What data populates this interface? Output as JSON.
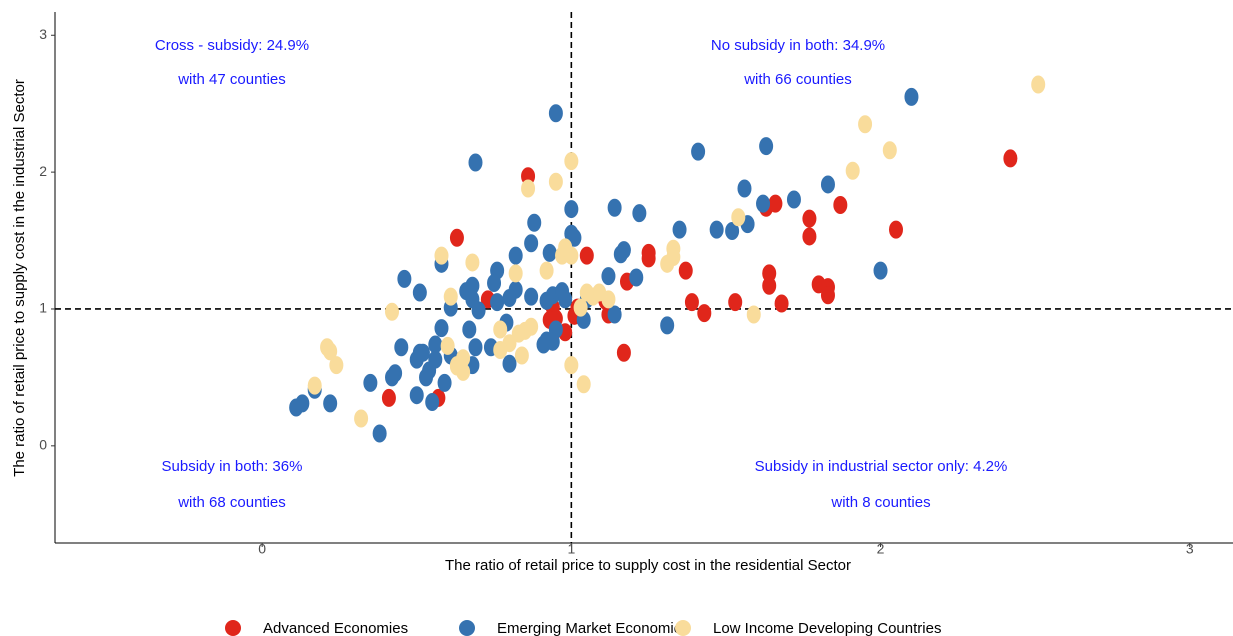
{
  "chart_data": {
    "type": "scatter",
    "x_label": "The ratio of retail price to supply cost in the residential Sector",
    "y_label": "The ratio of retail price to supply cost in the industrial Sector",
    "xlim": [
      -0.67,
      3.14
    ],
    "ylim": [
      -0.71,
      3.17
    ],
    "xticks": [
      0,
      1,
      2,
      3
    ],
    "yticks": [
      0,
      1,
      2,
      3
    ],
    "vline": 1,
    "hline": 1,
    "legend": "bottom",
    "annotations": [
      "Cross - subsidy: 24.9%",
      "with 47 counties",
      "No subsidy in both: 34.9%",
      "with 66 counties",
      "Subsidy in both: 36%",
      "with 68 counties",
      "Subsidy in industrial sector only: 4.2%",
      "with 8 counties"
    ],
    "series": [
      {
        "name": "Advanced Economies",
        "color": "#e0261b",
        "x": [
          0.63,
          0.86,
          1.05,
          1.25,
          1.25,
          1.18,
          1.37,
          1.39,
          1.43,
          1.11,
          1.12,
          1.17,
          1.53,
          1.63,
          1.66,
          1.64,
          1.64,
          1.68,
          1.77,
          1.77,
          1.8,
          1.83,
          1.83,
          1.87,
          2.05,
          2.42,
          0.73,
          0.94,
          0.95,
          0.98,
          0.93,
          0.41,
          0.57,
          1.01,
          1.02
        ],
        "y": [
          1.52,
          1.97,
          1.39,
          1.41,
          1.37,
          1.2,
          1.28,
          1.05,
          0.97,
          1.06,
          0.96,
          0.68,
          1.05,
          1.74,
          1.77,
          1.26,
          1.17,
          1.04,
          1.66,
          1.53,
          1.18,
          1.16,
          1.1,
          1.76,
          1.58,
          2.1,
          1.07,
          1.01,
          0.93,
          0.83,
          0.92,
          0.35,
          0.35,
          0.95,
          1.01
        ]
      },
      {
        "name": "Emerging Market Economies",
        "color": "#3572b0",
        "x": [
          0.95,
          0.69,
          1.41,
          1.63,
          2.1,
          1.83,
          1.56,
          1.72,
          1.62,
          1.14,
          1.0,
          1.22,
          0.88,
          1.57,
          1.52,
          1.47,
          1.35,
          1.0,
          1.01,
          0.87,
          1.17,
          1.16,
          0.93,
          0.82,
          0.58,
          0.76,
          0.46,
          1.12,
          1.21,
          0.75,
          0.68,
          0.51,
          0.82,
          0.66,
          0.8,
          0.87,
          0.94,
          0.97,
          0.98,
          0.92,
          0.68,
          0.61,
          0.76,
          0.7,
          1.05,
          1.14,
          0.67,
          0.79,
          0.58,
          1.04,
          0.95,
          0.92,
          0.94,
          0.91,
          0.45,
          0.56,
          0.69,
          0.74,
          0.61,
          0.52,
          0.56,
          0.5,
          0.43,
          0.54,
          0.68,
          0.8,
          0.53,
          0.42,
          0.35,
          0.59,
          0.17,
          0.5,
          0.55,
          0.22,
          0.13,
          0.11,
          0.38,
          2.0,
          1.31,
          0.51
        ],
        "y": [
          2.43,
          2.07,
          2.15,
          2.19,
          2.55,
          1.91,
          1.88,
          1.8,
          1.77,
          1.74,
          1.73,
          1.7,
          1.63,
          1.62,
          1.57,
          1.58,
          1.58,
          1.55,
          1.52,
          1.48,
          1.43,
          1.4,
          1.41,
          1.39,
          1.33,
          1.28,
          1.22,
          1.24,
          1.23,
          1.19,
          1.17,
          1.12,
          1.14,
          1.13,
          1.08,
          1.09,
          1.1,
          1.13,
          1.07,
          1.06,
          1.07,
          1.01,
          1.05,
          0.99,
          1.07,
          0.96,
          0.85,
          0.9,
          0.86,
          0.92,
          0.85,
          0.77,
          0.76,
          0.74,
          0.72,
          0.74,
          0.72,
          0.72,
          0.66,
          0.68,
          0.63,
          0.63,
          0.53,
          0.55,
          0.59,
          0.6,
          0.5,
          0.5,
          0.46,
          0.46,
          0.41,
          0.37,
          0.32,
          0.31,
          0.31,
          0.28,
          0.09,
          1.28,
          0.88,
          0.68
        ]
      },
      {
        "name": "Low Income Developing Countries",
        "color": "#f9dc9b",
        "x": [
          2.51,
          1.95,
          2.03,
          1.91,
          1.0,
          0.95,
          0.86,
          1.54,
          1.33,
          1.33,
          1.31,
          0.97,
          1.0,
          0.58,
          0.68,
          0.82,
          0.92,
          0.98,
          1.07,
          1.09,
          1.05,
          1.03,
          0.61,
          0.42,
          0.77,
          0.83,
          0.85,
          0.87,
          0.8,
          0.84,
          0.77,
          0.6,
          0.65,
          0.63,
          0.65,
          1.0,
          1.04,
          0.21,
          0.22,
          0.24,
          0.17,
          0.32,
          1.59,
          1.12,
          0.63
        ],
        "y": [
          2.64,
          2.35,
          2.16,
          2.01,
          2.08,
          1.93,
          1.88,
          1.67,
          1.44,
          1.38,
          1.33,
          1.39,
          1.39,
          1.39,
          1.34,
          1.26,
          1.28,
          1.45,
          1.09,
          1.12,
          1.12,
          1.01,
          1.09,
          0.98,
          0.85,
          0.82,
          0.84,
          0.87,
          0.75,
          0.66,
          0.7,
          0.73,
          0.64,
          0.58,
          0.54,
          0.59,
          0.45,
          0.72,
          0.69,
          0.59,
          0.44,
          0.2,
          0.96,
          1.07,
          0.59
        ]
      }
    ]
  }
}
